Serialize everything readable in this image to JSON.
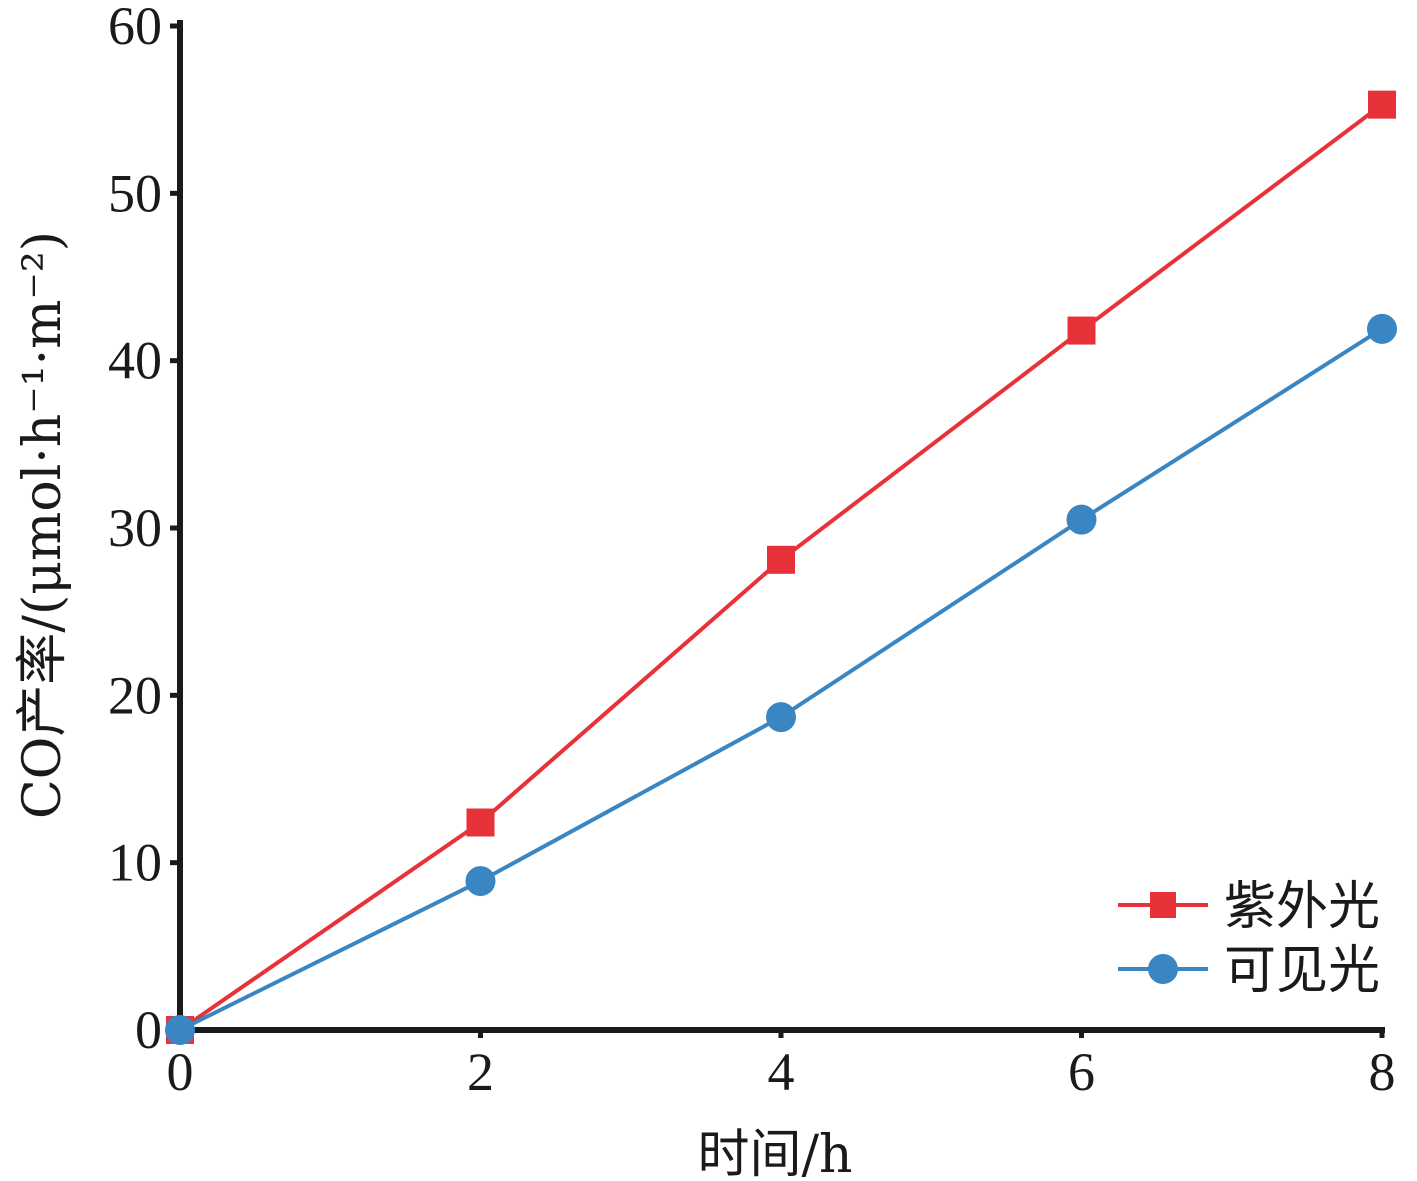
{
  "chart_data": {
    "type": "line",
    "xlabel": "时间/h",
    "ylabel": "CO产率/(μmol·h⁻¹·m⁻²)",
    "x": [
      0,
      2,
      4,
      6,
      8
    ],
    "xlim": [
      0,
      8
    ],
    "ylim": [
      0,
      60
    ],
    "xticks": [
      0,
      2,
      4,
      6,
      8
    ],
    "yticks": [
      0,
      10,
      20,
      30,
      40,
      50,
      60
    ],
    "grid": false,
    "legend_position": "bottom-right",
    "series": [
      {
        "name": "紫外光",
        "values": [
          0,
          12.4,
          28.1,
          41.8,
          55.3
        ],
        "color": "#e8323a",
        "marker": "square"
      },
      {
        "name": "可见光",
        "values": [
          0,
          8.9,
          18.7,
          30.5,
          41.9
        ],
        "color": "#3a86c3",
        "marker": "circle"
      }
    ]
  }
}
